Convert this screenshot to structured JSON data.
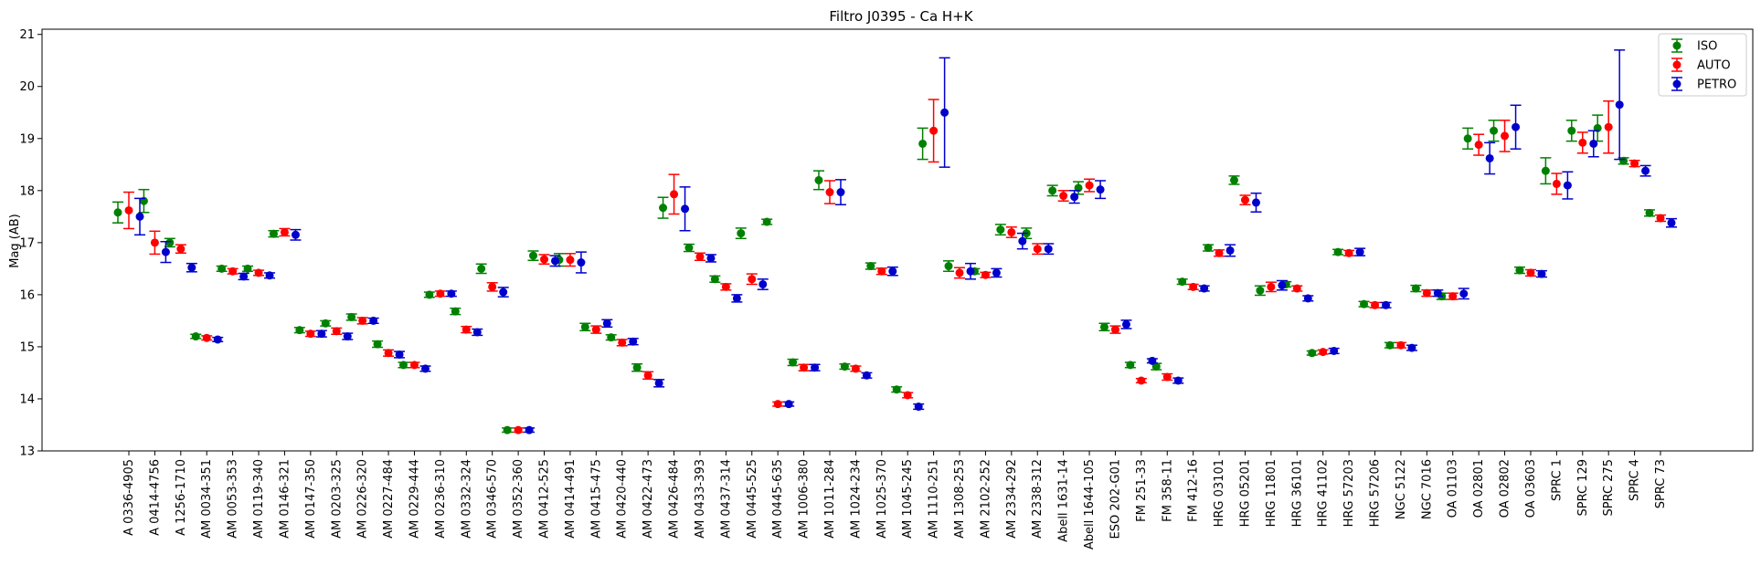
{
  "chart_data": {
    "type": "scatter",
    "title": "Filtro J0395 - Ca H+K",
    "xlabel": "",
    "ylabel": "Mag (AB)",
    "ylim": [
      13,
      21.1
    ],
    "yticks": [
      13,
      14,
      15,
      16,
      17,
      18,
      19,
      20,
      21
    ],
    "grid": false,
    "legend_position": "top-right",
    "categories": [
      "A 0336-4905",
      "A 0414-4756",
      "A 1256-1710",
      "AM 0034-351",
      "AM 0053-353",
      "AM 0119-340",
      "AM 0146-321",
      "AM 0147-350",
      "AM 0203-325",
      "AM 0226-320",
      "AM 0227-484",
      "AM 0229-444",
      "AM 0236-310",
      "AM 0332-324",
      "AM 0346-570",
      "AM 0352-360",
      "AM 0412-525",
      "AM 0414-491",
      "AM 0415-475",
      "AM 0420-440",
      "AM 0422-473",
      "AM 0426-484",
      "AM 0433-393",
      "AM 0437-314",
      "AM 0445-525",
      "AM 0445-635",
      "AM 1006-380",
      "AM 1011-284",
      "AM 1024-234",
      "AM 1025-370",
      "AM 1045-245",
      "AM 1110-251",
      "AM 1308-253",
      "AM 2102-252",
      "AM 2334-292",
      "AM 2338-312",
      "Abell 1631-14",
      "Abell 1644-105",
      "ESO 202-G01",
      "FM 251-33",
      "FM 358-11",
      "FM 412-16",
      "HRG 03101",
      "HRG 05201",
      "HRG 11801",
      "HRG 36101",
      "HRG 41102",
      "HRG 57203",
      "HRG 57206",
      "NGC 5122",
      "NGC 7016",
      "OA 01103",
      "OA 02801",
      "OA 02802",
      "OA 03603",
      "SPRC 1",
      "SPRC 129",
      "SPRC 275",
      "SPRC 4",
      "SPRC 73"
    ],
    "series": [
      {
        "name": "ISO",
        "color": "#008000",
        "values": [
          17.58,
          17.8,
          17.0,
          15.2,
          16.5,
          16.5,
          17.17,
          15.32,
          15.45,
          15.57,
          15.05,
          14.65,
          16.0,
          15.68,
          16.5,
          13.4,
          16.75,
          16.67,
          15.38,
          15.18,
          14.6,
          17.67,
          16.9,
          16.3,
          17.18,
          17.4,
          14.7,
          18.2,
          14.62,
          16.55,
          14.18,
          18.9,
          16.55,
          16.45,
          17.25,
          17.18,
          18.0,
          18.05,
          15.38,
          14.65,
          14.62,
          16.25,
          16.9,
          18.2,
          16.08,
          16.2,
          14.88,
          16.82,
          15.82,
          15.03,
          16.12,
          15.97,
          19.0,
          19.15,
          16.47,
          18.38,
          19.15,
          19.2,
          18.57,
          17.57
        ],
        "errors": [
          0.2,
          0.22,
          0.08,
          0.04,
          0.05,
          0.05,
          0.06,
          0.05,
          0.05,
          0.06,
          0.06,
          0.05,
          0.05,
          0.06,
          0.09,
          0.04,
          0.09,
          0.12,
          0.07,
          0.05,
          0.07,
          0.2,
          0.07,
          0.06,
          0.1,
          0.05,
          0.06,
          0.18,
          0.05,
          0.06,
          0.05,
          0.3,
          0.1,
          0.05,
          0.1,
          0.1,
          0.1,
          0.12,
          0.07,
          0.05,
          0.06,
          0.05,
          0.06,
          0.08,
          0.09,
          0.05,
          0.04,
          0.05,
          0.05,
          0.05,
          0.06,
          0.06,
          0.2,
          0.2,
          0.06,
          0.25,
          0.2,
          0.25,
          0.06,
          0.06
        ]
      },
      {
        "name": "AUTO",
        "color": "#ff0000",
        "values": [
          17.62,
          17.0,
          16.88,
          15.17,
          16.45,
          16.42,
          17.2,
          15.25,
          15.3,
          15.5,
          14.88,
          14.65,
          16.02,
          15.33,
          16.15,
          13.4,
          16.68,
          16.67,
          15.33,
          15.08,
          14.45,
          17.93,
          16.73,
          16.15,
          16.3,
          13.9,
          14.6,
          17.97,
          14.58,
          16.45,
          14.07,
          19.15,
          16.42,
          16.38,
          17.2,
          16.88,
          17.9,
          18.1,
          15.33,
          14.35,
          14.42,
          16.15,
          16.8,
          17.82,
          16.15,
          16.12,
          14.9,
          16.8,
          15.8,
          15.03,
          16.03,
          15.97,
          18.88,
          19.05,
          16.42,
          18.13,
          18.92,
          19.22,
          18.52,
          17.47
        ],
        "errors": [
          0.35,
          0.22,
          0.08,
          0.04,
          0.05,
          0.05,
          0.07,
          0.05,
          0.06,
          0.06,
          0.06,
          0.05,
          0.05,
          0.06,
          0.08,
          0.04,
          0.09,
          0.12,
          0.07,
          0.06,
          0.07,
          0.38,
          0.07,
          0.06,
          0.1,
          0.04,
          0.06,
          0.22,
          0.05,
          0.06,
          0.05,
          0.6,
          0.1,
          0.05,
          0.1,
          0.1,
          0.1,
          0.12,
          0.07,
          0.04,
          0.06,
          0.05,
          0.06,
          0.09,
          0.09,
          0.05,
          0.04,
          0.05,
          0.05,
          0.05,
          0.06,
          0.06,
          0.2,
          0.3,
          0.06,
          0.2,
          0.2,
          0.5,
          0.06,
          0.06
        ]
      },
      {
        "name": "PETRO",
        "color": "#0000cc",
        "values": [
          17.5,
          16.82,
          16.52,
          15.14,
          16.35,
          16.37,
          17.15,
          15.25,
          15.2,
          15.5,
          14.85,
          14.58,
          16.02,
          15.28,
          16.05,
          13.4,
          16.65,
          16.62,
          15.45,
          15.1,
          14.3,
          17.65,
          16.7,
          15.93,
          16.2,
          13.9,
          14.6,
          17.97,
          14.45,
          16.45,
          13.85,
          19.5,
          16.45,
          16.42,
          17.03,
          16.88,
          17.88,
          18.02,
          15.43,
          14.73,
          14.35,
          16.12,
          16.85,
          17.77,
          16.18,
          15.93,
          14.92,
          16.82,
          15.8,
          14.98,
          16.03,
          16.02,
          18.62,
          19.22,
          16.4,
          18.1,
          18.9,
          19.65,
          18.38,
          17.38
        ],
        "errors": [
          0.35,
          0.2,
          0.08,
          0.04,
          0.06,
          0.05,
          0.1,
          0.06,
          0.06,
          0.05,
          0.06,
          0.05,
          0.05,
          0.06,
          0.09,
          0.04,
          0.1,
          0.2,
          0.07,
          0.06,
          0.07,
          0.42,
          0.07,
          0.07,
          0.1,
          0.04,
          0.06,
          0.24,
          0.05,
          0.08,
          0.05,
          1.05,
          0.15,
          0.08,
          0.15,
          0.1,
          0.12,
          0.17,
          0.08,
          0.04,
          0.05,
          0.05,
          0.11,
          0.18,
          0.09,
          0.05,
          0.05,
          0.07,
          0.05,
          0.05,
          0.06,
          0.1,
          0.3,
          0.42,
          0.06,
          0.26,
          0.25,
          1.05,
          0.1,
          0.08
        ]
      }
    ]
  }
}
